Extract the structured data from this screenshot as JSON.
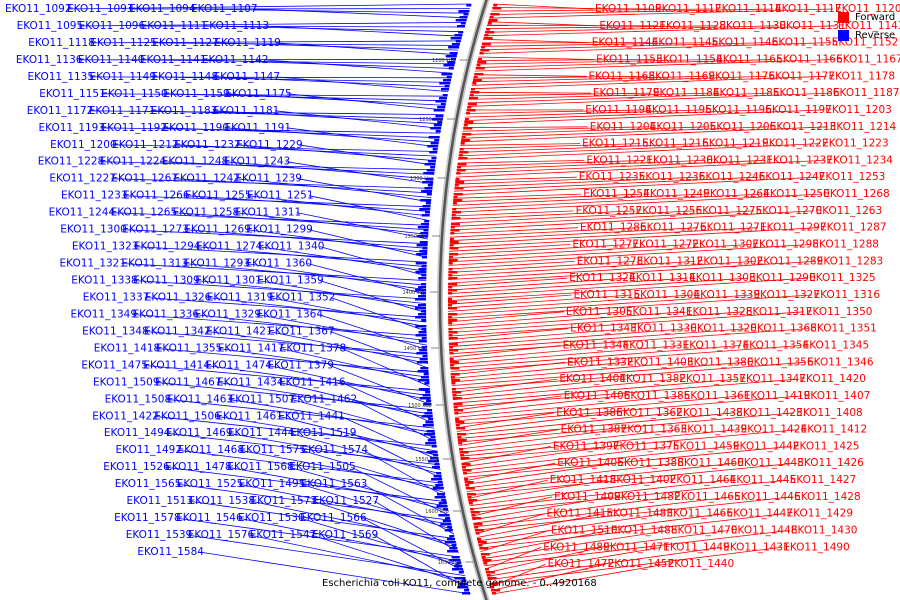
{
  "legend": {
    "forward_label": "Forward",
    "reverse_label": "Reverse",
    "forward_color": "#ff0000",
    "reverse_color": "#0000ff"
  },
  "caption": "Escherichia coli KO11, complete genome. - 0..4920168",
  "scale_ticks": [
    "1200 kbp",
    "1250 kbp",
    "1300 kbp",
    "1350 kbp",
    "1400 kbp",
    "1450 kbp",
    "1500 kbp",
    "1550 kbp",
    "1600 kbp",
    "1650 kbp"
  ],
  "reverse_genes": [
    "EKO11_1092",
    "EKO11_1093",
    "EKO11_1094",
    "EKO11_1107",
    "EKO11_1095",
    "EKO11_1096",
    "EKO11_1111",
    "EKO11_1113",
    "EKO11_1118",
    "EKO11_1125",
    "EKO11_1127",
    "EKO11_1119",
    "EKO11_1136",
    "EKO11_1140",
    "EKO11_1141",
    "EKO11_1142",
    "EKO11_1135",
    "EKO11_1149",
    "EKO11_1148",
    "EKO11_1147",
    "EKO11_1151",
    "EKO11_1150",
    "EKO11_1159",
    "EKO11_1175",
    "EKO11_1172",
    "EKO11_1171",
    "EKO11_1183",
    "EKO11_1181",
    "EKO11_1193",
    "EKO11_1192",
    "EKO11_1190",
    "EKO11_1191",
    "EKO11_1200",
    "EKO11_1212",
    "EKO11_1232",
    "EKO11_1229",
    "EKO11_1228",
    "EKO11_1224",
    "EKO11_1248",
    "EKO11_1243",
    "EKO11_1227",
    "EKO11_1267",
    "EKO11_1242",
    "EKO11_1239",
    "EKO11_1233",
    "EKO11_1266",
    "EKO11_1255",
    "EKO11_1251",
    "EKO11_1244",
    "EKO11_1265",
    "EKO11_1258",
    "EKO11_1311",
    "EKO11_1300",
    "EKO11_1273",
    "EKO11_1269",
    "EKO11_1299",
    "EKO11_1323",
    "EKO11_1294",
    "EKO11_1274",
    "EKO11_1340",
    "EKO11_1321",
    "EKO11_1313",
    "EKO11_1293",
    "EKO11_1360",
    "EKO11_1338",
    "EKO11_1309",
    "EKO11_1301",
    "EKO11_1359",
    "EKO11_1337",
    "EKO11_1326",
    "EKO11_1319",
    "EKO11_1352",
    "EKO11_1349",
    "EKO11_1336",
    "EKO11_1329",
    "EKO11_1364",
    "EKO11_1348",
    "EKO11_1342",
    "EKO11_1421",
    "EKO11_1367",
    "EKO11_1418",
    "EKO11_1355",
    "EKO11_1417",
    "EKO11_1378",
    "EKO11_1475",
    "EKO11_1414",
    "EKO11_1474",
    "EKO11_1379",
    "EKO11_1509",
    "EKO11_1467",
    "EKO11_1434",
    "EKO11_1416",
    "EKO11_1508",
    "EKO11_1463",
    "EKO11_1507",
    "EKO11_1462",
    "EKO11_1422",
    "EKO11_1506",
    "EKO11_1461",
    "EKO11_1441",
    "EKO11_1494",
    "EKO11_1469",
    "EKO11_1444",
    "EKO11_1519",
    "EKO11_1492",
    "EKO11_1468",
    "EKO11_1575",
    "EKO11_1574",
    "EKO11_1526",
    "EKO11_1478",
    "EKO11_1568",
    "EKO11_1505",
    "EKO11_1565",
    "EKO11_1525",
    "EKO11_1495",
    "EKO11_1563",
    "EKO11_1513",
    "EKO11_1538",
    "EKO11_1573",
    "EKO11_1527",
    "EKO11_1578",
    "EKO11_1546",
    "EKO11_1530",
    "EKO11_1566",
    "EKO11_1539",
    "EKO11_1576",
    "EKO11_1547",
    "EKO11_1569",
    "EKO11_1584"
  ],
  "forward_genes": [
    "EKO11_1109",
    "EKO11_1112",
    "EKO11_1114",
    "EKO11_1117",
    "EKO11_1120",
    "EKO11_1121",
    "EKO11_1128",
    "EKO11_1130",
    "EKO11_1131",
    "EKO11_1143",
    "EKO11_1144",
    "EKO11_1145",
    "EKO11_1146",
    "EKO11_1155",
    "EKO11_1152",
    "EKO11_1153",
    "EKO11_1154",
    "EKO11_1165",
    "EKO11_1166",
    "EKO11_1167",
    "EKO11_1168",
    "EKO11_1169",
    "EKO11_1176",
    "EKO11_1177",
    "EKO11_1178",
    "EKO11_1179",
    "EKO11_1184",
    "EKO11_1185",
    "EKO11_1186",
    "EKO11_1187",
    "EKO11_1194",
    "EKO11_1195",
    "EKO11_1196",
    "EKO11_1197",
    "EKO11_1203",
    "EKO11_1204",
    "EKO11_1205",
    "EKO11_1206",
    "EKO11_1213",
    "EKO11_1214",
    "EKO11_1215",
    "EKO11_1216",
    "EKO11_1219",
    "EKO11_1222",
    "EKO11_1223",
    "EKO11_1221",
    "EKO11_1230",
    "EKO11_1231",
    "EKO11_1237",
    "EKO11_1234",
    "EKO11_1235",
    "EKO11_1236",
    "EKO11_1246",
    "EKO11_1247",
    "EKO11_1253",
    "EKO11_1254",
    "EKO11_1249",
    "EKO11_1264",
    "EKO11_1250",
    "EKO11_1268",
    "EKO11_1257",
    "EKO11_1256",
    "EKO11_1275",
    "EKO11_1270",
    "EKO11_1263",
    "EKO11_1286",
    "EKO11_1276",
    "EKO11_1271",
    "EKO11_1297",
    "EKO11_1287",
    "EKO11_1277",
    "EKO11_1272",
    "EKO11_1307",
    "EKO11_1298",
    "EKO11_1288",
    "EKO11_1278",
    "EKO11_1312",
    "EKO11_1302",
    "EKO11_1289",
    "EKO11_1283",
    "EKO11_1324",
    "EKO11_1314",
    "EKO11_1303",
    "EKO11_1290",
    "EKO11_1325",
    "EKO11_1315",
    "EKO11_1304",
    "EKO11_1339",
    "EKO11_1327",
    "EKO11_1316",
    "EKO11_1305",
    "EKO11_1341",
    "EKO11_1328",
    "EKO11_1317",
    "EKO11_1350",
    "EKO11_1343",
    "EKO11_1330",
    "EKO11_1320",
    "EKO11_1368",
    "EKO11_1351",
    "EKO11_1344",
    "EKO11_1331",
    "EKO11_1374",
    "EKO11_1354",
    "EKO11_1345",
    "EKO11_1332",
    "EKO11_1403",
    "EKO11_1380",
    "EKO11_1356",
    "EKO11_1346",
    "EKO11_1404",
    "EKO11_1382",
    "EKO11_1357",
    "EKO11_1347",
    "EKO11_1420",
    "EKO11_1406",
    "EKO11_1385",
    "EKO11_1361",
    "EKO11_1419",
    "EKO11_1407",
    "EKO11_1386",
    "EKO11_1362",
    "EKO11_1438",
    "EKO11_1423",
    "EKO11_1408",
    "EKO11_1387",
    "EKO11_1363",
    "EKO11_1439",
    "EKO11_1424",
    "EKO11_1412",
    "EKO11_1397",
    "EKO11_1375",
    "EKO11_1459",
    "EKO11_1442",
    "EKO11_1425",
    "EKO11_1405",
    "EKO11_1388",
    "EKO11_1460",
    "EKO11_1443",
    "EKO11_1426",
    "EKO11_1413",
    "EKO11_1402",
    "EKO11_1464",
    "EKO11_1445",
    "EKO11_1427",
    "EKO11_1409",
    "EKO11_1482",
    "EKO11_1465",
    "EKO11_1446",
    "EKO11_1428",
    "EKO11_1415",
    "EKO11_1483",
    "EKO11_1466",
    "EKO11_1447",
    "EKO11_1429",
    "EKO11_1510",
    "EKO11_1488",
    "EKO11_1470",
    "EKO11_1448",
    "EKO11_1430",
    "EKO11_1489",
    "EKO11_1471",
    "EKO11_1449",
    "EKO11_1431",
    "EKO11_1490",
    "EKO11_1472",
    "EKO11_1452",
    "EKO11_1440"
  ]
}
